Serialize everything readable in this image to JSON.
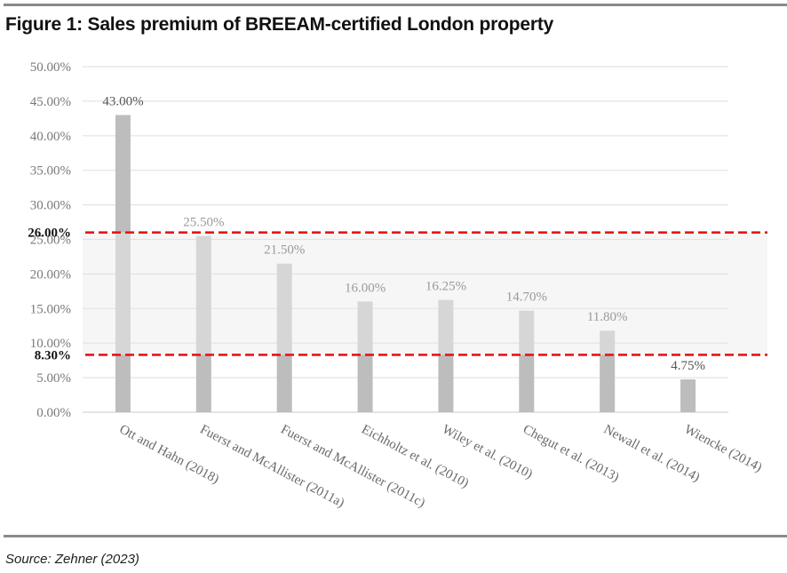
{
  "figure": {
    "title": "Figure 1: Sales premium of BREEAM-certified London property",
    "source": "Source: Zehner (2023)"
  },
  "chart_data": {
    "type": "bar",
    "title": "Sales premium of BREEAM-certified London property",
    "xlabel": "",
    "ylabel": "",
    "ylim": [
      0,
      50
    ],
    "grid": true,
    "yticks": [
      0,
      5,
      10,
      15,
      20,
      25,
      30,
      35,
      40,
      45,
      50
    ],
    "ytick_labels": [
      "0.00%",
      "5.00%",
      "10.00%",
      "15.00%",
      "20.00%",
      "25.00%",
      "30.00%",
      "35.00%",
      "40.00%",
      "45.00%",
      "50.00%"
    ],
    "categories": [
      "Ott and Hahn (2018)",
      "Fuerst and McAllister (2011a)",
      "Fuerst and McAllister (2011c)",
      "Eichholtz et al. (2010)",
      "Wiley et al. (2010)",
      "Chegut et al. (2013)",
      "Newall et al. (2014)",
      "Wiencke (2014)"
    ],
    "values": [
      43.0,
      25.5,
      21.5,
      16.0,
      16.25,
      14.7,
      11.8,
      4.75
    ],
    "data_labels": [
      "43.00%",
      "25.50%",
      "21.50%",
      "16.00%",
      "16.25%",
      "14.70%",
      "11.80%",
      "4.75%"
    ],
    "reference_band": {
      "lower": 8.3,
      "upper": 26.0,
      "lower_label": "8.30%",
      "upper_label": "26.00%",
      "line_color": "#e8141a",
      "line_style": "dashed",
      "fill_color": "#f6f6f6"
    },
    "colors": {
      "bar_outside_band": "#bdbdbd",
      "bar_inside_band": "#d6d6d6",
      "gridline": "#e3e3e3",
      "label_dark": "#555555",
      "label_light": "#9a9a9a"
    }
  }
}
